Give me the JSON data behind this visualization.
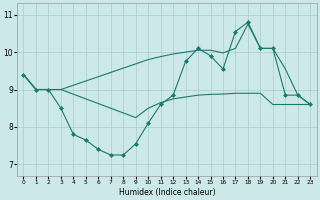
{
  "xlabel": "Humidex (Indice chaleur)",
  "bg_color": "#cce8e8",
  "line_color": "#1a7a6e",
  "grid_color": "#aacccc",
  "xlim": [
    -0.5,
    23.5
  ],
  "ylim": [
    6.7,
    11.3
  ],
  "yticks": [
    7,
    8,
    9,
    10,
    11
  ],
  "xticks": [
    0,
    1,
    2,
    3,
    4,
    5,
    6,
    7,
    8,
    9,
    10,
    11,
    12,
    13,
    14,
    15,
    16,
    17,
    18,
    19,
    20,
    21,
    22,
    23
  ],
  "line1_x": [
    0,
    1,
    2,
    3,
    4,
    5,
    6,
    7,
    8,
    9,
    10,
    11,
    12,
    13,
    14,
    15,
    16,
    17,
    18,
    19,
    20,
    21,
    22,
    23
  ],
  "line1_y": [
    9.4,
    9.0,
    9.0,
    8.5,
    7.8,
    7.65,
    7.4,
    7.25,
    7.25,
    7.55,
    8.1,
    8.6,
    8.85,
    9.75,
    10.1,
    9.9,
    9.55,
    10.55,
    10.8,
    10.1,
    10.1,
    8.85,
    8.85,
    8.6
  ],
  "line2_x": [
    0,
    1,
    2,
    3,
    9,
    10,
    11,
    12,
    13,
    14,
    15,
    16,
    17,
    18,
    19,
    20,
    21,
    22,
    23
  ],
  "line2_y": [
    9.4,
    9.0,
    9.0,
    9.0,
    8.25,
    8.5,
    8.65,
    8.75,
    8.8,
    8.85,
    8.87,
    8.88,
    8.9,
    8.9,
    8.9,
    8.6,
    8.6,
    8.6,
    8.6
  ],
  "line3_x": [
    0,
    1,
    2,
    3,
    10,
    11,
    12,
    13,
    14,
    15,
    16,
    17,
    18,
    19,
    20,
    21,
    22,
    23
  ],
  "line3_y": [
    9.4,
    9.0,
    9.0,
    9.0,
    9.8,
    9.88,
    9.95,
    10.0,
    10.05,
    10.05,
    9.98,
    10.1,
    10.75,
    10.1,
    10.1,
    9.55,
    8.85,
    8.6
  ]
}
